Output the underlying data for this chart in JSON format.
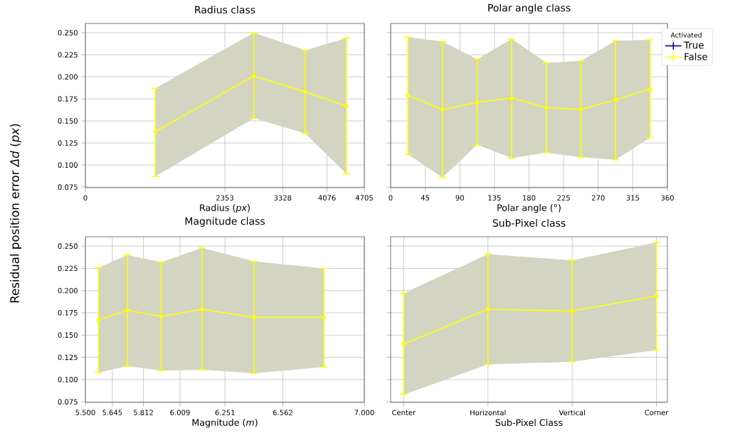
{
  "chart_data": [
    {
      "type": "line",
      "title": "Radius class",
      "xlabel": "Radius (*px*)",
      "ylabel": "Residual position error *Δd* (*px*)",
      "xlim": [
        0,
        4705
      ],
      "xticks": [
        0,
        2353,
        3328,
        4076,
        4705
      ],
      "ylim": [
        0.0743,
        0.2605
      ],
      "yticks": [
        {
          "value": 0.075,
          "label": "0.075"
        },
        {
          "value": 0.1,
          "label": "0.100"
        },
        {
          "value": 0.125,
          "label": "0.125"
        },
        {
          "value": 0.15,
          "label": "0.150"
        },
        {
          "value": 0.175,
          "label": "0.175"
        },
        {
          "value": 0.2,
          "label": "0.200"
        },
        {
          "value": 0.225,
          "label": "0.225"
        },
        {
          "value": 0.25,
          "label": "0.250"
        }
      ],
      "grid": true,
      "marker": "circle",
      "x": [
        1179,
        2843,
        3707,
        4403
      ],
      "series": [
        {
          "color": "#ffff00",
          "values": [
            0.138,
            0.201,
            0.183,
            0.167
          ],
          "lower": [
            0.087,
            0.153,
            0.136,
            0.09
          ],
          "upper": [
            0.187,
            0.25,
            0.23,
            0.244
          ],
          "errors": [
            [
              0.087,
              0.187
            ],
            [
              0.153,
              0.25
            ],
            [
              0.136,
              0.23
            ],
            [
              0.09,
              0.244
            ]
          ]
        }
      ]
    },
    {
      "type": "line",
      "title": "Polar angle class",
      "xlabel": "Polar angle (°)",
      "xlim": [
        0,
        360
      ],
      "xticks": [
        0,
        45,
        90,
        135,
        180,
        225,
        270,
        315,
        360
      ],
      "ylim": [
        0.0743,
        0.2605
      ],
      "yticks": [
        {
          "value": 0.075,
          "label": null
        },
        {
          "value": 0.1,
          "label": null
        },
        {
          "value": 0.125,
          "label": null
        },
        {
          "value": 0.15,
          "label": null
        },
        {
          "value": 0.175,
          "label": null
        },
        {
          "value": 0.2,
          "label": null
        },
        {
          "value": 0.225,
          "label": null
        },
        {
          "value": 0.25,
          "label": null
        }
      ],
      "tick_labels": "x",
      "grid": true,
      "marker": "circle",
      "legend": "top right",
      "legend_title": "Activated",
      "x": [
        22.5,
        67.5,
        112.5,
        157.5,
        202.5,
        247.5,
        292.5,
        337.5
      ],
      "series": [
        {
          "name": "True",
          "color": "#00008b",
          "values": [
            null,
            null,
            null,
            null,
            null,
            null,
            null,
            null
          ]
        },
        {
          "name": "False",
          "color": "#ffff00",
          "values": [
            0.179,
            0.163,
            0.171,
            0.176,
            0.165,
            0.163,
            0.174,
            0.186
          ],
          "lower": [
            0.112,
            0.086,
            0.123,
            0.108,
            0.114,
            0.109,
            0.106,
            0.131
          ],
          "upper": [
            0.245,
            0.24,
            0.22,
            0.243,
            0.216,
            0.218,
            0.241,
            0.242
          ],
          "errors": [
            [
              0.112,
              0.245
            ],
            [
              0.086,
              0.24
            ],
            [
              0.123,
              0.22
            ],
            [
              0.108,
              0.243
            ],
            [
              0.114,
              0.216
            ],
            [
              0.109,
              0.218
            ],
            [
              0.106,
              0.241
            ],
            [
              0.131,
              0.242
            ]
          ]
        }
      ]
    },
    {
      "type": "line",
      "title": "Magnitude class",
      "xlabel": "Magnitude (*m*)",
      "xlim": [
        5.5,
        7.0
      ],
      "xticks": [
        {
          "value": 5.5,
          "label": "5.500"
        },
        5.645,
        5.812,
        6.009,
        6.251,
        6.562,
        {
          "value": 7.0,
          "label": "7.000"
        }
      ],
      "ylim": [
        0.0743,
        0.2605
      ],
      "yticks": [
        {
          "value": 0.075,
          "label": "0.075"
        },
        {
          "value": 0.1,
          "label": "0.100"
        },
        {
          "value": 0.125,
          "label": "0.125"
        },
        {
          "value": 0.15,
          "label": "0.150"
        },
        {
          "value": 0.175,
          "label": "0.175"
        },
        {
          "value": 0.2,
          "label": "0.200"
        },
        {
          "value": 0.225,
          "label": "0.225"
        },
        {
          "value": 0.25,
          "label": "0.250"
        }
      ],
      "grid": true,
      "marker": "circle",
      "x": [
        5.571,
        5.726,
        5.908,
        6.128,
        6.407,
        6.783
      ],
      "series": [
        {
          "color": "#ffff00",
          "values": [
            0.167,
            0.178,
            0.171,
            0.179,
            0.17,
            0.17
          ],
          "lower": [
            0.108,
            0.115,
            0.11,
            0.111,
            0.107,
            0.114
          ],
          "upper": [
            0.226,
            0.24,
            0.232,
            0.248,
            0.233,
            0.225
          ],
          "errors": [
            [
              0.108,
              0.226
            ],
            [
              0.115,
              0.24
            ],
            [
              0.11,
              0.232
            ],
            [
              0.111,
              0.248
            ],
            [
              0.107,
              0.233
            ],
            [
              0.114,
              0.225
            ]
          ]
        }
      ]
    },
    {
      "type": "line",
      "title": "Sub-Pixel class",
      "xlabel": "Sub-Pixel Class",
      "categories": [
        "Center",
        "Horizontal",
        "Vertical",
        "Corner"
      ],
      "ylim": [
        0.0743,
        0.2605
      ],
      "yticks": [
        {
          "value": 0.075,
          "label": null
        },
        {
          "value": 0.1,
          "label": null
        },
        {
          "value": 0.125,
          "label": null
        },
        {
          "value": 0.15,
          "label": null
        },
        {
          "value": 0.175,
          "label": null
        },
        {
          "value": 0.2,
          "label": null
        },
        {
          "value": 0.225,
          "label": null
        },
        {
          "value": 0.25,
          "label": null
        }
      ],
      "tick_labels": "x",
      "grid": true,
      "marker": "circle",
      "series": [
        {
          "color": "#ffff00",
          "values": [
            0.14,
            0.179,
            0.177,
            0.194
          ],
          "lower": [
            0.083,
            0.117,
            0.12,
            0.133
          ],
          "upper": [
            0.197,
            0.241,
            0.234,
            0.254
          ],
          "errors": [
            [
              0.083,
              0.197
            ],
            [
              0.117,
              0.241
            ],
            [
              0.12,
              0.234
            ],
            [
              0.133,
              0.254
            ]
          ]
        }
      ]
    }
  ]
}
